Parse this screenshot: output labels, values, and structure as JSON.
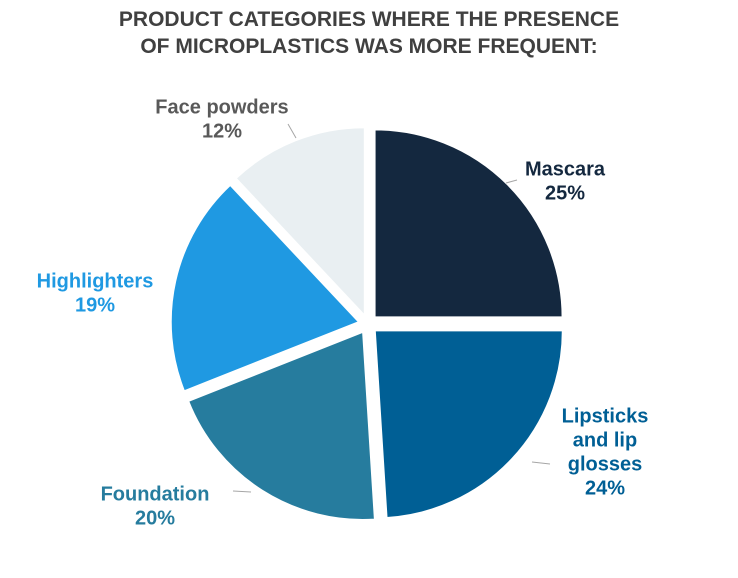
{
  "title": {
    "line1": "PRODUCT CATEGORIES WHERE THE PRESENCE",
    "line2": "OF MICROPLASTICS WAS MORE FREQUENT:"
  },
  "chart_data": {
    "type": "pie",
    "title": "PRODUCT CATEGORIES WHERE THE PRESENCE OF MICROPLASTICS WAS MORE FREQUENT:",
    "start": "12 o'clock, clockwise",
    "exploded": true,
    "slices": [
      {
        "name": "Mascara",
        "value": 25,
        "value_label": "25%",
        "label_lines": [
          "Mascara"
        ],
        "color": "#14283f",
        "label_color": "#14283f"
      },
      {
        "name": "Lipsticks and lip glosses",
        "value": 24,
        "value_label": "24%",
        "label_lines": [
          "Lipsticks",
          "and lip",
          "glosses"
        ],
        "color": "#005f95",
        "label_color": "#005f95"
      },
      {
        "name": "Foundation",
        "value": 20,
        "value_label": "20%",
        "label_lines": [
          "Foundation"
        ],
        "color": "#267c9e",
        "label_color": "#267c9e"
      },
      {
        "name": "Highlighters",
        "value": 19,
        "value_label": "19%",
        "label_lines": [
          "Highlighters"
        ],
        "color": "#1f99e2",
        "label_color": "#1f99e2"
      },
      {
        "name": "Face powders",
        "value": 12,
        "value_label": "12%",
        "label_lines": [
          "Face powders"
        ],
        "color": "#e9eff2",
        "label_color": "#595959"
      }
    ]
  }
}
